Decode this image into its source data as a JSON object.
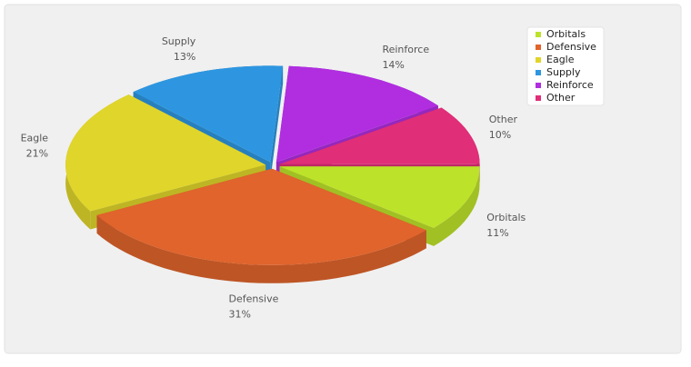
{
  "chart_data": {
    "type": "pie3d",
    "categories": [
      "Orbitals",
      "Defensive",
      "Eagle",
      "Supply",
      "Reinforce",
      "Other"
    ],
    "values": [
      11,
      31,
      21,
      13,
      14,
      10
    ],
    "value_labels": [
      "11%",
      "31%",
      "21%",
      "13%",
      "14%",
      "10%"
    ],
    "colors": [
      "#bde22a",
      "#e0642c",
      "#e0d52a",
      "#2e96e0",
      "#b02ee0",
      "#e02e78"
    ],
    "legend": "top-right"
  }
}
